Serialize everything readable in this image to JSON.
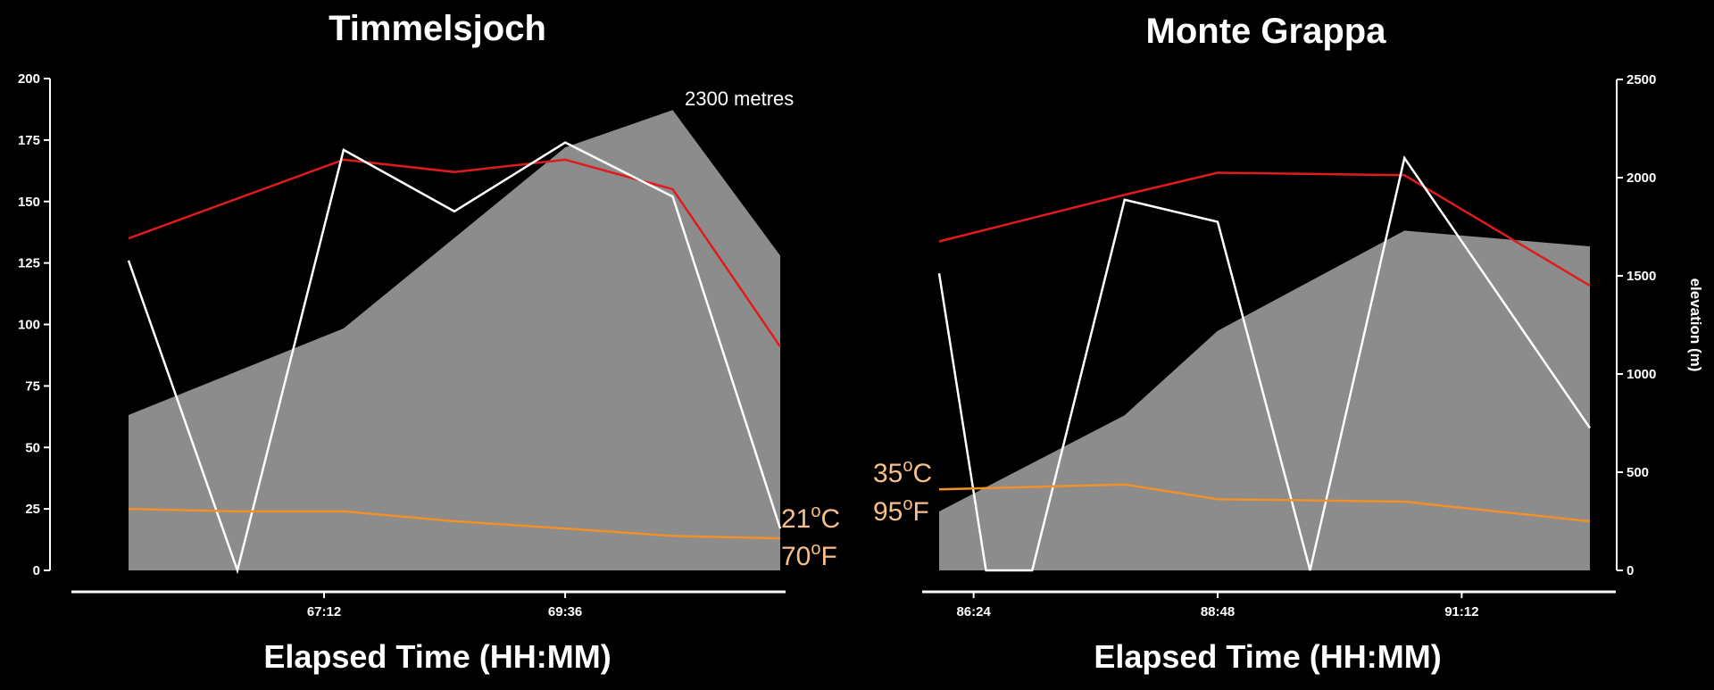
{
  "chart_data": [
    {
      "type": "line",
      "title": "Timmelsjoch",
      "xlabel": "Elapsed Time (HH:MM)",
      "x_ticks": [
        "67:12",
        "69:36"
      ],
      "x_tick_positions": [
        0.3,
        0.67
      ],
      "ylim": [
        0,
        200
      ],
      "y_ticks": [
        "0",
        "25",
        "50",
        "75",
        "100",
        "125",
        "150",
        "175",
        "200"
      ],
      "elevation_ylim": [
        0,
        2500
      ],
      "grid": false,
      "elevation_area": {
        "x": [
          0,
          0.33,
          0.67,
          0.835,
          1.0
        ],
        "values": [
          790,
          1230,
          2150,
          2340,
          1600
        ]
      },
      "series": [
        {
          "color": "#e01b1b",
          "x": [
            0,
            0.33,
            0.5,
            0.67,
            0.835,
            1.0
          ],
          "values": [
            135,
            167,
            162,
            167,
            155,
            91
          ]
        },
        {
          "color": "#ffffff",
          "x": [
            0,
            0.167,
            0.33,
            0.5,
            0.67,
            0.835,
            1.0
          ],
          "values": [
            126,
            0,
            171,
            146,
            174,
            152,
            17
          ]
        },
        {
          "color": "#f0902a",
          "x": [
            0,
            0.167,
            0.33,
            0.5,
            0.67,
            0.835,
            1.0
          ],
          "values": [
            25,
            24,
            24,
            20,
            17,
            14,
            13
          ]
        }
      ],
      "annotations": {
        "peak": "2300 metres",
        "temp_c": "21",
        "temp_c_unit": "C",
        "temp_f": "70",
        "temp_f_unit": "F"
      }
    },
    {
      "type": "line",
      "title": "Monte Grappa",
      "xlabel": "Elapsed Time (HH:MM)",
      "ylabel": "elevation (m)",
      "x_ticks": [
        "86:24",
        "88:48",
        "91:12"
      ],
      "x_tick_positions": [
        0.053,
        0.428,
        0.803
      ],
      "ylim": [
        0,
        200
      ],
      "elevation_ylim": [
        0,
        2500
      ],
      "y_ticks_right": [
        "0",
        "500",
        "1000",
        "1500",
        "2000",
        "2500"
      ],
      "grid": false,
      "elevation_area": {
        "x": [
          0,
          0.285,
          0.428,
          0.715,
          1.0
        ],
        "values": [
          300,
          790,
          1220,
          1730,
          1650
        ]
      },
      "series": [
        {
          "color": "#e01b1b",
          "x": [
            0,
            0.285,
            0.428,
            0.715,
            1.0
          ],
          "values": [
            134,
            153,
            162,
            161,
            116
          ]
        },
        {
          "color": "#ffffff",
          "x": [
            0,
            0.072,
            0.143,
            0.285,
            0.428,
            0.57,
            0.715,
            1.0
          ],
          "values": [
            121,
            0,
            0,
            151,
            142,
            0,
            168,
            58
          ]
        },
        {
          "color": "#f0902a",
          "x": [
            0,
            0.285,
            0.428,
            0.715,
            1.0
          ],
          "values": [
            33,
            35,
            29,
            28,
            20
          ]
        }
      ],
      "annotations": {
        "temp_c": "35",
        "temp_c_unit": "C",
        "temp_f": "95",
        "temp_f_unit": "F"
      }
    }
  ]
}
